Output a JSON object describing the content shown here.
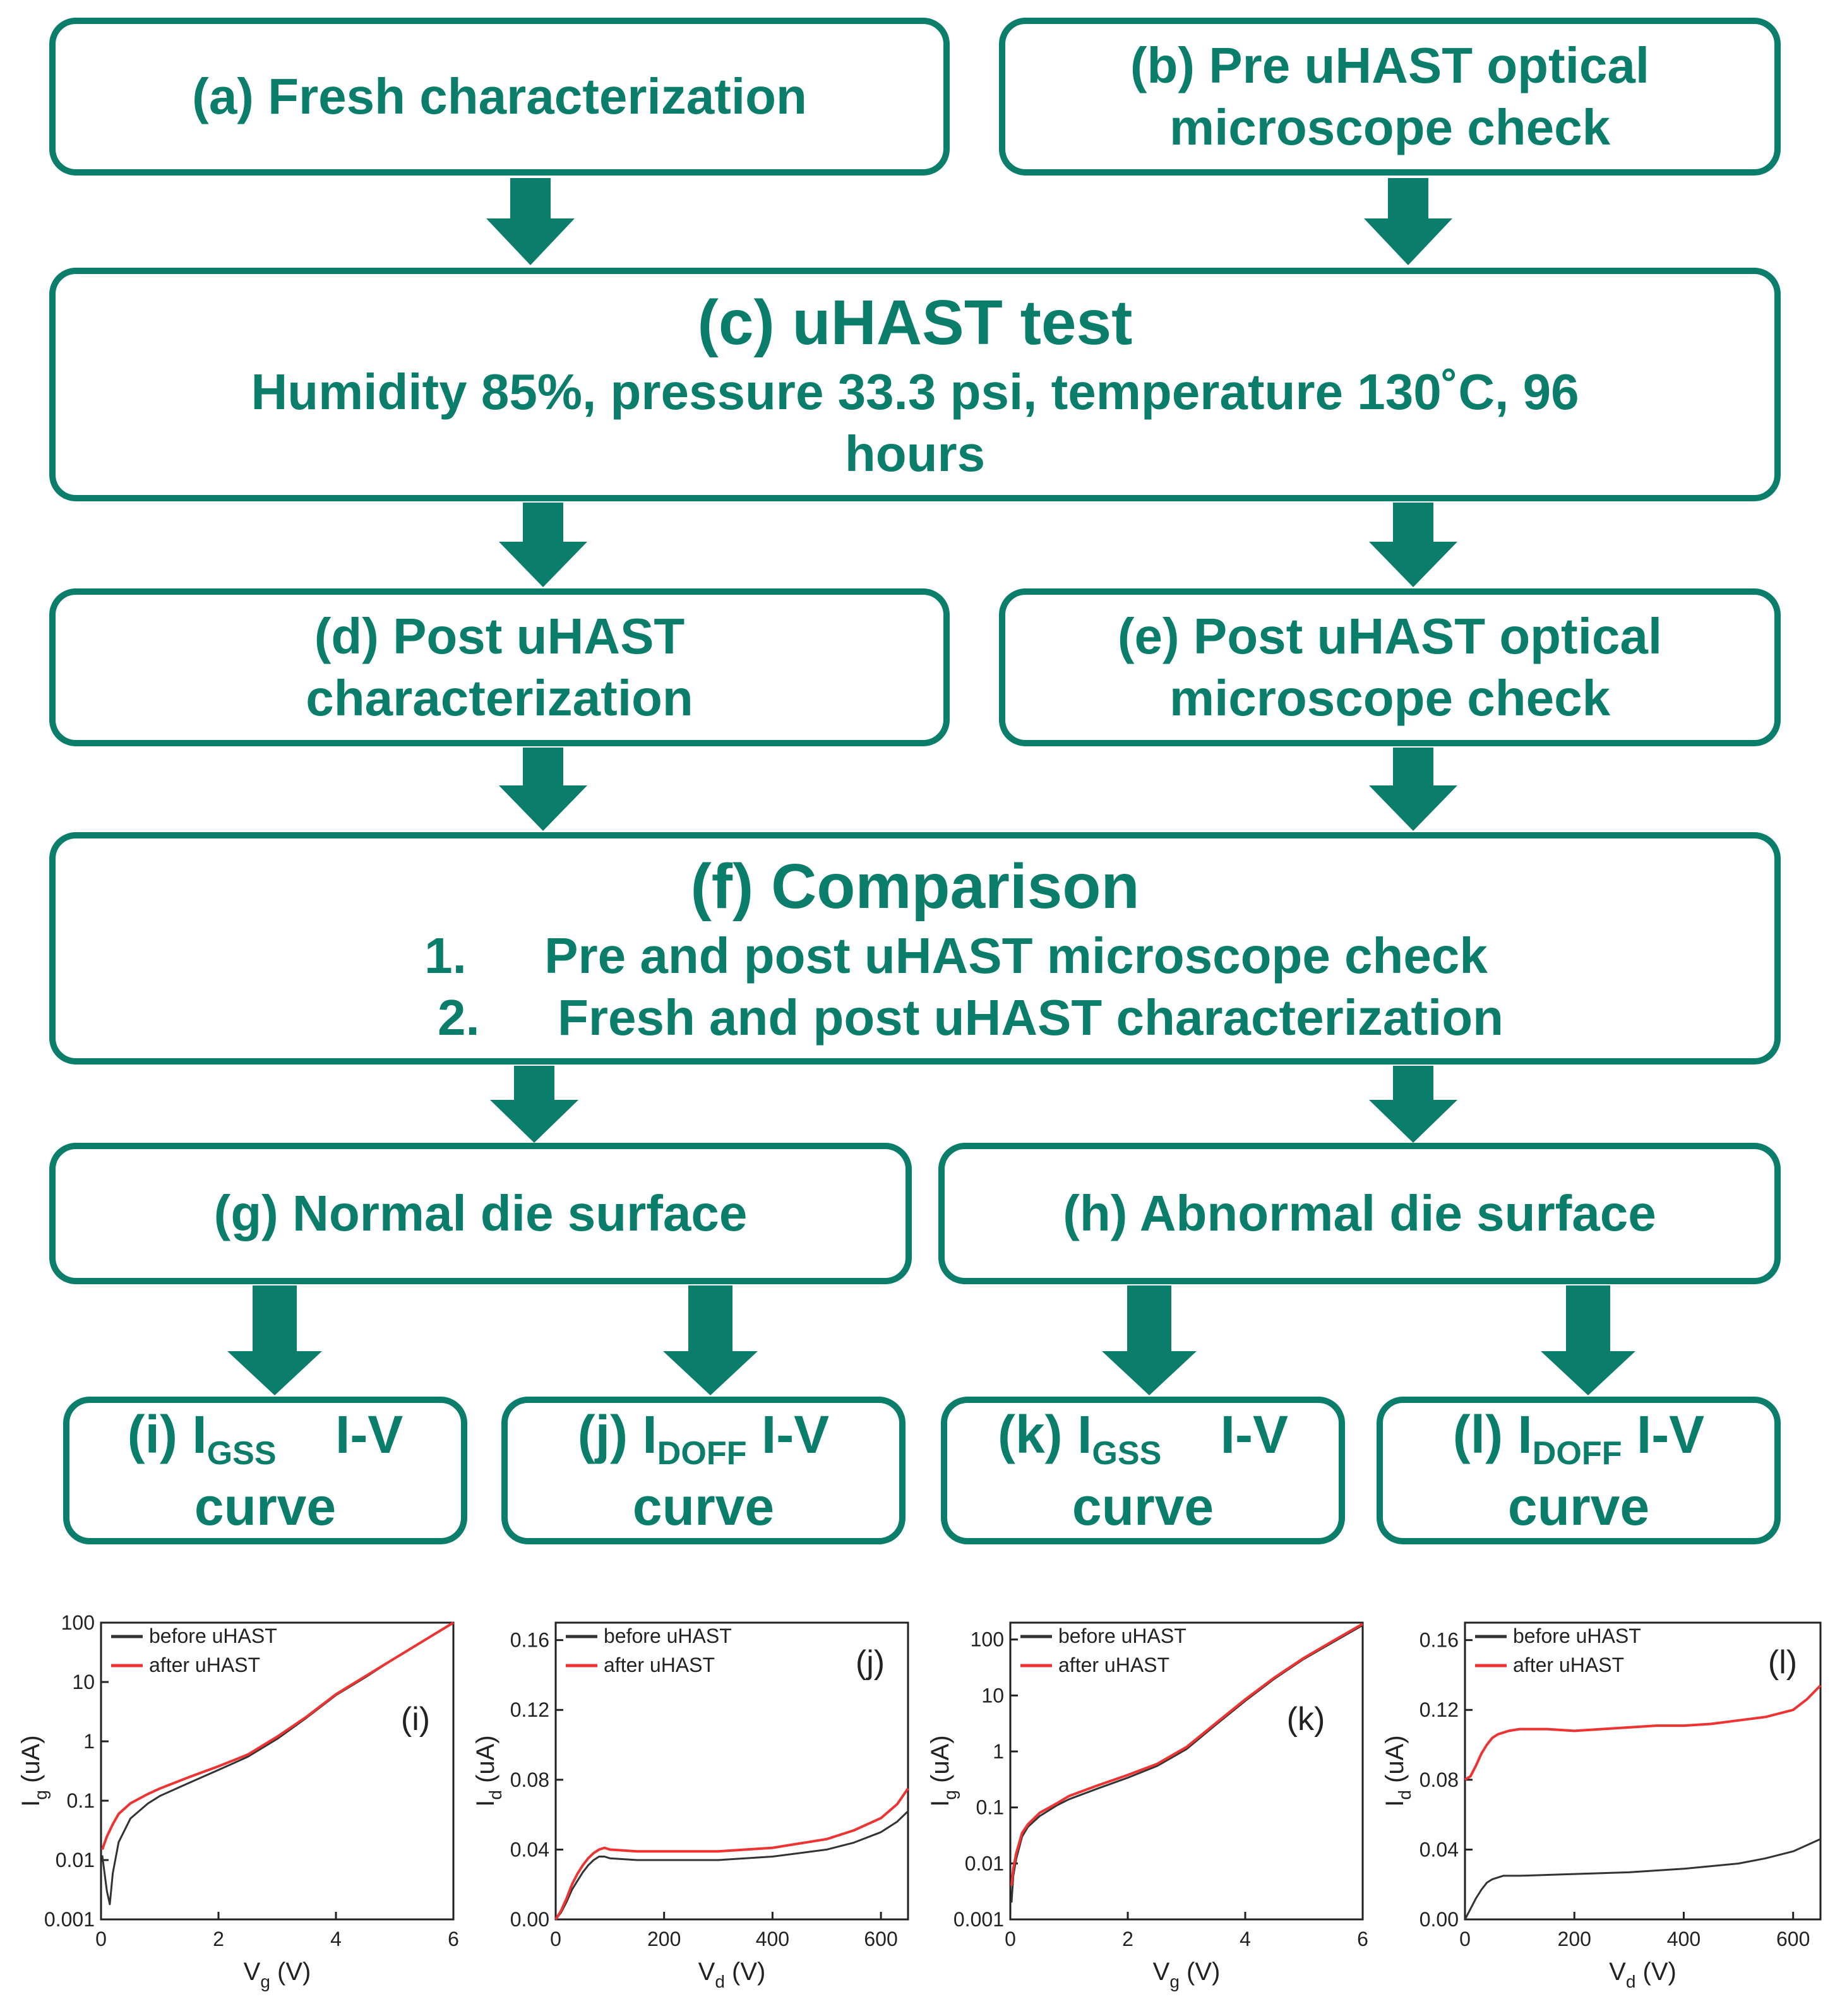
{
  "flowchart": {
    "a": "(a) Fresh characterization",
    "b": [
      "(b) Pre uHAST optical",
      "microscope check"
    ],
    "c": {
      "title": "(c) uHAST test",
      "conditions": [
        "Humidity 85%, pressure 33.3 psi, temperature 130˚C, 96",
        "hours"
      ]
    },
    "d": [
      "(d) Post uHAST",
      "characterization"
    ],
    "e": [
      "(e) Post uHAST optical",
      "microscope check"
    ],
    "f": {
      "title": "(f) Comparison",
      "items": [
        {
          "num": "1.",
          "text": "Pre and post uHAST microscope check"
        },
        {
          "num": "2.",
          "text": "Fresh and post uHAST characterization"
        }
      ]
    },
    "g": "(g) Normal die surface",
    "h": "(h) Abnormal die surface",
    "i": {
      "prefix": "(i) I",
      "sub": "GSS",
      "suffix": "I-V",
      "line2": "curve"
    },
    "j": {
      "prefix": "(j) I",
      "sub": "DOFF",
      "suffix": "I-V",
      "line2": "curve"
    },
    "k": {
      "prefix": "(k) I",
      "sub": "GSS",
      "suffix": "I-V",
      "line2": "curve"
    },
    "l": {
      "prefix": "(l) I",
      "sub": "DOFF",
      "suffix": "I-V",
      "line2": "curve"
    }
  },
  "colors": {
    "accent": "#0b7d6b",
    "before": "#333333",
    "after": "#ee3333"
  },
  "chart_data": [
    {
      "id": "i",
      "type": "line",
      "panel_label": "(i)",
      "yscale": "log",
      "xlabel": "V",
      "xlabel_sub": "g",
      "xlabel_unit": "(V)",
      "ylabel": "I",
      "ylabel_sub": "g",
      "ylabel_unit": "(uA)",
      "xlim": [
        0,
        6
      ],
      "ylim": [
        0.001,
        100
      ],
      "xticks": [
        0,
        2,
        4,
        6
      ],
      "yticks": [
        0.001,
        0.01,
        0.1,
        1,
        10,
        100
      ],
      "ytick_labels": [
        "0.001",
        "0.01",
        "0.1",
        "1",
        "10",
        "100"
      ],
      "legend": [
        "before uHAST",
        "after uHAST"
      ],
      "series": [
        {
          "name": "before uHAST",
          "x": [
            0.02,
            0.06,
            0.1,
            0.15,
            0.2,
            0.3,
            0.5,
            0.8,
            1,
            1.5,
            2,
            2.5,
            3,
            3.5,
            4,
            4.5,
            5,
            5.5,
            6
          ],
          "y": [
            0.012,
            0.006,
            0.003,
            0.0018,
            0.006,
            0.02,
            0.05,
            0.09,
            0.12,
            0.2,
            0.33,
            0.55,
            1.1,
            2.5,
            6,
            12,
            25,
            50,
            100
          ]
        },
        {
          "name": "after uHAST",
          "x": [
            0.02,
            0.1,
            0.2,
            0.3,
            0.5,
            0.8,
            1,
            1.5,
            2,
            2.5,
            3,
            3.5,
            4,
            4.5,
            5,
            5.5,
            6
          ],
          "y": [
            0.015,
            0.025,
            0.04,
            0.06,
            0.09,
            0.13,
            0.16,
            0.25,
            0.38,
            0.6,
            1.2,
            2.6,
            6.2,
            12.5,
            25,
            50,
            100
          ]
        }
      ]
    },
    {
      "id": "j",
      "type": "line",
      "panel_label": "(j)",
      "yscale": "linear",
      "xlabel": "V",
      "xlabel_sub": "d",
      "xlabel_unit": "(V)",
      "ylabel": "I",
      "ylabel_sub": "d",
      "ylabel_unit": "(uA)",
      "xlim": [
        0,
        650
      ],
      "ylim": [
        0,
        0.17
      ],
      "xticks": [
        0,
        200,
        400,
        600
      ],
      "yticks": [
        0,
        0.04,
        0.08,
        0.12,
        0.16
      ],
      "ytick_labels": [
        "0.00",
        "0.04",
        "0.08",
        "0.12",
        "0.16"
      ],
      "legend": [
        "before uHAST",
        "after uHAST"
      ],
      "series": [
        {
          "name": "before uHAST",
          "x": [
            0,
            10,
            20,
            30,
            40,
            50,
            60,
            70,
            80,
            90,
            100,
            150,
            200,
            300,
            400,
            500,
            550,
            600,
            630,
            650
          ],
          "y": [
            0,
            0.004,
            0.01,
            0.017,
            0.022,
            0.027,
            0.031,
            0.034,
            0.036,
            0.036,
            0.035,
            0.034,
            0.034,
            0.034,
            0.036,
            0.04,
            0.044,
            0.05,
            0.056,
            0.062
          ]
        },
        {
          "name": "after uHAST",
          "x": [
            0,
            10,
            20,
            30,
            40,
            50,
            60,
            70,
            80,
            90,
            100,
            150,
            200,
            300,
            400,
            500,
            550,
            600,
            630,
            650
          ],
          "y": [
            0,
            0.005,
            0.012,
            0.02,
            0.026,
            0.031,
            0.035,
            0.038,
            0.04,
            0.041,
            0.04,
            0.039,
            0.039,
            0.039,
            0.041,
            0.046,
            0.051,
            0.058,
            0.066,
            0.075
          ]
        }
      ]
    },
    {
      "id": "k",
      "type": "line",
      "panel_label": "(k)",
      "yscale": "log",
      "xlabel": "V",
      "xlabel_sub": "g",
      "xlabel_unit": "(V)",
      "ylabel": "I",
      "ylabel_sub": "g",
      "ylabel_unit": "(uA)",
      "xlim": [
        0,
        6
      ],
      "ylim": [
        0.001,
        200
      ],
      "xticks": [
        0,
        2,
        4,
        6
      ],
      "yticks": [
        0.001,
        0.01,
        0.1,
        1,
        10,
        100
      ],
      "ytick_labels": [
        "0.001",
        "0.01",
        "0.1",
        "1",
        "10",
        "100"
      ],
      "legend": [
        "before uHAST",
        "after uHAST"
      ],
      "series": [
        {
          "name": "before uHAST",
          "x": [
            0.02,
            0.05,
            0.1,
            0.2,
            0.3,
            0.5,
            0.8,
            1,
            1.5,
            2,
            2.5,
            3,
            3.5,
            4,
            4.5,
            5,
            5.5,
            6
          ],
          "y": [
            0.002,
            0.006,
            0.012,
            0.03,
            0.045,
            0.07,
            0.11,
            0.14,
            0.22,
            0.34,
            0.55,
            1.1,
            3,
            8,
            20,
            45,
            90,
            180
          ]
        },
        {
          "name": "after uHAST",
          "x": [
            0.02,
            0.05,
            0.1,
            0.2,
            0.3,
            0.5,
            0.8,
            1,
            1.5,
            2,
            2.5,
            3,
            3.5,
            4,
            4.5,
            5,
            5.5,
            6
          ],
          "y": [
            0.004,
            0.008,
            0.015,
            0.035,
            0.05,
            0.08,
            0.12,
            0.16,
            0.25,
            0.38,
            0.6,
            1.2,
            3.2,
            8.5,
            21,
            47,
            95,
            190
          ]
        }
      ]
    },
    {
      "id": "l",
      "type": "line",
      "panel_label": "(l)",
      "yscale": "linear",
      "xlabel": "V",
      "xlabel_sub": "d",
      "xlabel_unit": "(V)",
      "ylabel": "I",
      "ylabel_sub": "d",
      "ylabel_unit": "(uA)",
      "xlim": [
        0,
        650
      ],
      "ylim": [
        0,
        0.17
      ],
      "xticks": [
        0,
        200,
        400,
        600
      ],
      "yticks": [
        0,
        0.04,
        0.08,
        0.12,
        0.16
      ],
      "ytick_labels": [
        "0.00",
        "0.04",
        "0.08",
        "0.12",
        "0.16"
      ],
      "legend": [
        "before uHAST",
        "after uHAST"
      ],
      "series": [
        {
          "name": "before uHAST",
          "x": [
            0,
            10,
            20,
            30,
            40,
            50,
            70,
            100,
            200,
            300,
            400,
            500,
            550,
            600,
            650
          ],
          "y": [
            0,
            0.006,
            0.012,
            0.017,
            0.021,
            0.023,
            0.025,
            0.025,
            0.026,
            0.027,
            0.029,
            0.032,
            0.035,
            0.039,
            0.046
          ]
        },
        {
          "name": "after uHAST",
          "x": [
            0,
            10,
            20,
            30,
            40,
            50,
            60,
            70,
            80,
            100,
            150,
            200,
            250,
            300,
            350,
            400,
            450,
            500,
            550,
            600,
            625,
            650
          ],
          "y": [
            0.08,
            0.082,
            0.088,
            0.095,
            0.1,
            0.104,
            0.106,
            0.107,
            0.108,
            0.109,
            0.109,
            0.108,
            0.109,
            0.11,
            0.111,
            0.111,
            0.112,
            0.114,
            0.116,
            0.12,
            0.126,
            0.134
          ]
        }
      ]
    }
  ]
}
